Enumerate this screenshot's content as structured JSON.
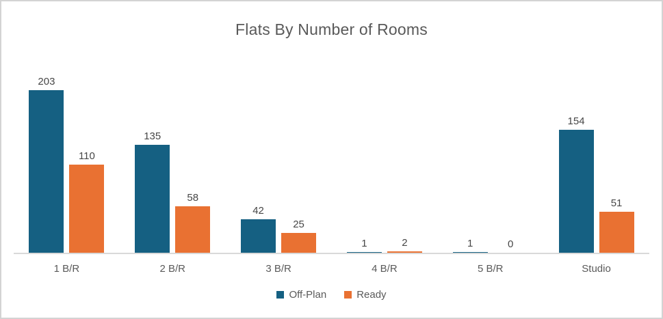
{
  "chart_data": {
    "type": "bar",
    "title": "Flats By Number of Rooms",
    "categories": [
      "1 B/R",
      "2 B/R",
      "3 B/R",
      "4 B/R",
      "5 B/R",
      "Studio"
    ],
    "series": [
      {
        "name": "Off-Plan",
        "color": "#156082",
        "values": [
          203,
          135,
          42,
          1,
          1,
          154
        ]
      },
      {
        "name": "Ready",
        "color": "#E97132",
        "values": [
          110,
          58,
          25,
          2,
          0,
          51
        ]
      }
    ],
    "ylim": [
      0,
      240
    ],
    "grid": false,
    "data_labels": true,
    "legend_position": "bottom",
    "axis_line_color": "#D9D9D9",
    "frame_border_color": "#D3D3D3",
    "title_color": "#595959",
    "label_color": "#595959",
    "value_label_color": "#464646"
  }
}
